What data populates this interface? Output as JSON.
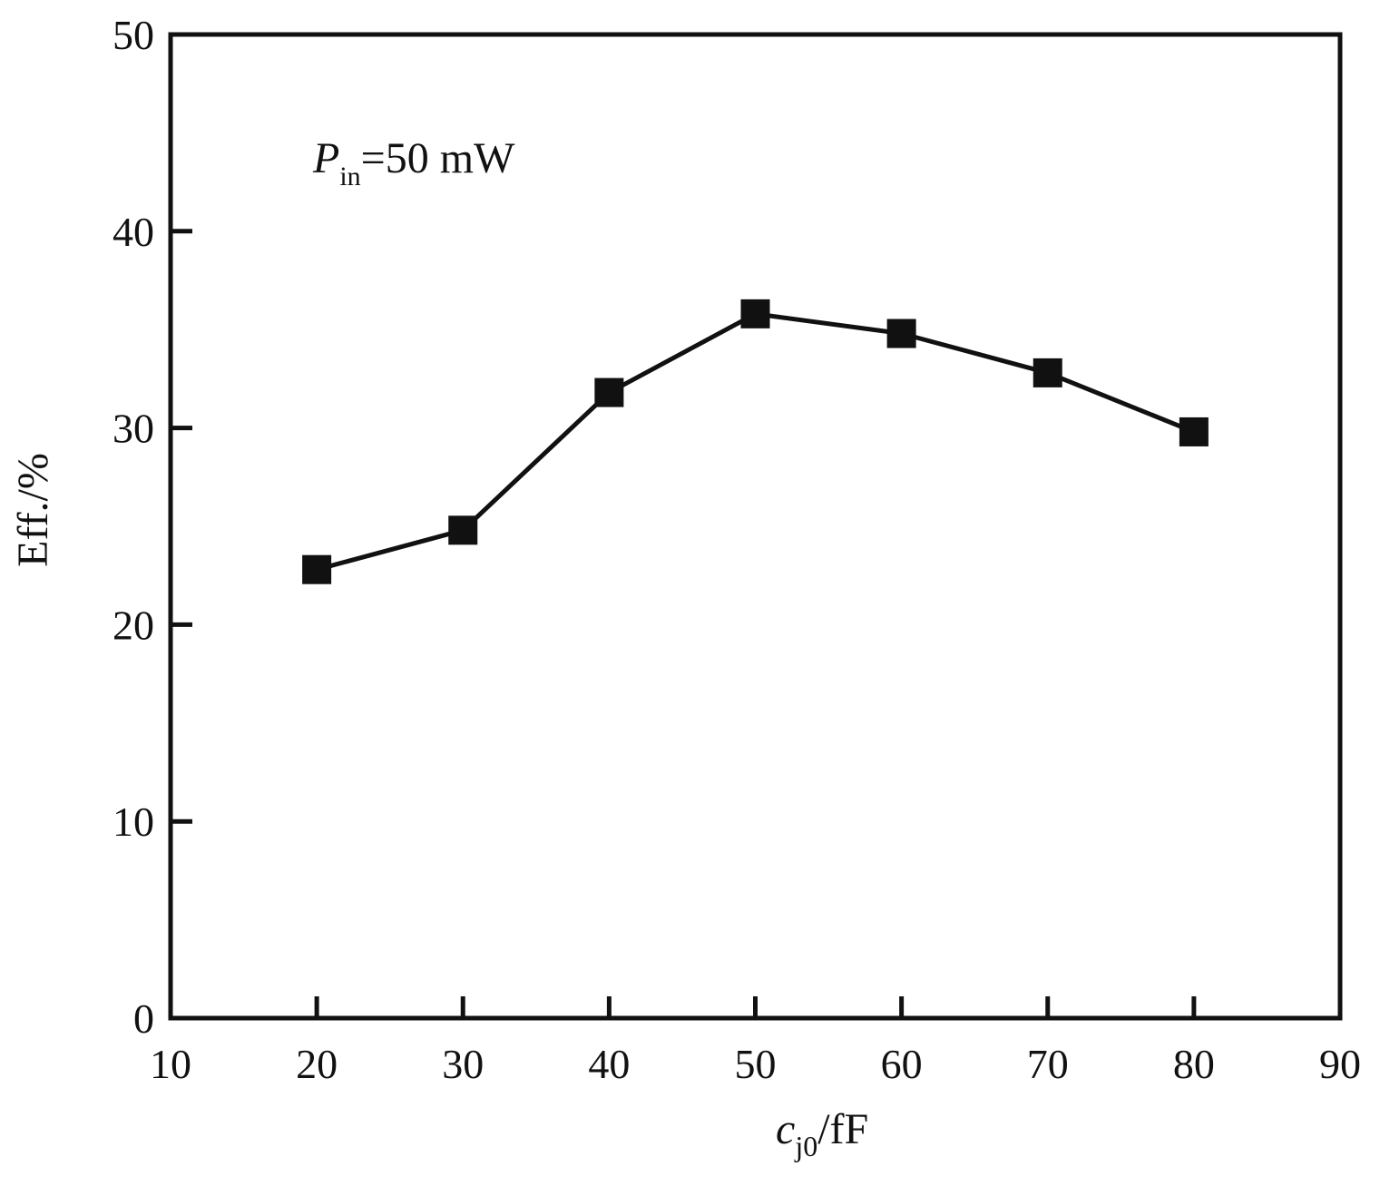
{
  "chart_data": {
    "type": "line",
    "xlabel": {
      "main": "c",
      "sub": "j0",
      "unit": "/fF"
    },
    "ylabel": "Eff./%",
    "xlim": [
      10,
      90
    ],
    "ylim": [
      0,
      50
    ],
    "xticks": [
      10,
      20,
      30,
      40,
      50,
      60,
      70,
      80,
      90
    ],
    "yticks": [
      0,
      10,
      20,
      30,
      40,
      50
    ],
    "annotation": {
      "main": "P",
      "sub": "in",
      "rest": "=50 mW"
    },
    "grid": false,
    "legend": "none",
    "series": [
      {
        "marker": "filled-square",
        "color": "#111111",
        "x": [
          20,
          30,
          40,
          50,
          60,
          70,
          80
        ],
        "y": [
          22.8,
          24.8,
          31.8,
          35.8,
          34.8,
          32.8,
          29.8
        ]
      }
    ]
  }
}
